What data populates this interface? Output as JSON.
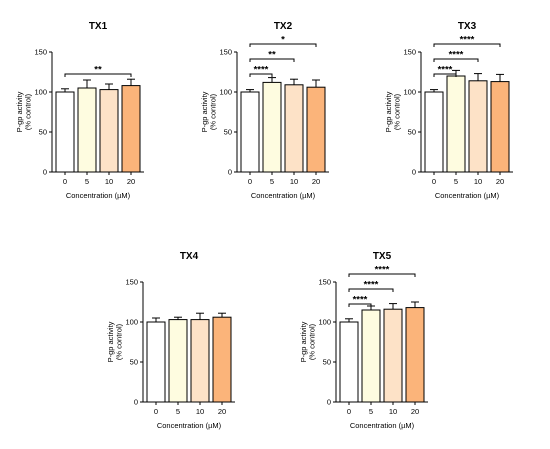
{
  "colors": {
    "c0": "#ffffff",
    "c5": "#fefce0",
    "c10": "#fde2c7",
    "c20": "#fbb47a"
  },
  "chart_data": [
    {
      "type": "bar",
      "title": "TX1",
      "ylabel": [
        "P-gp activity",
        "(% control)"
      ],
      "xlabel": "Concentration (µM)",
      "categories": [
        "0",
        "5",
        "10",
        "20"
      ],
      "values": [
        100,
        105,
        103,
        108
      ],
      "errors": [
        4,
        10,
        7,
        8
      ],
      "ylim": [
        0,
        150
      ],
      "yticks": [
        "0",
        "50",
        "100",
        "150"
      ],
      "significance": [
        {
          "from": 0,
          "to": 3,
          "label": "**"
        }
      ]
    },
    {
      "type": "bar",
      "title": "TX2",
      "ylabel": [
        "P-gp activity",
        "(% control)"
      ],
      "xlabel": "Concentration (µM)",
      "categories": [
        "0",
        "5",
        "10",
        "20"
      ],
      "values": [
        100,
        112,
        109,
        106
      ],
      "errors": [
        3,
        6,
        7,
        9
      ],
      "ylim": [
        0,
        150
      ],
      "yticks": [
        "0",
        "50",
        "100",
        "150"
      ],
      "significance": [
        {
          "from": 0,
          "to": 1,
          "label": "****"
        },
        {
          "from": 0,
          "to": 2,
          "label": "**"
        },
        {
          "from": 0,
          "to": 3,
          "label": "*"
        }
      ]
    },
    {
      "type": "bar",
      "title": "TX3",
      "ylabel": [
        "P-gp activity",
        "(% control)"
      ],
      "xlabel": "Concentration (µM)",
      "categories": [
        "0",
        "5",
        "10",
        "20"
      ],
      "values": [
        100,
        120,
        114,
        113
      ],
      "errors": [
        3,
        7,
        9,
        9
      ],
      "ylim": [
        0,
        150
      ],
      "yticks": [
        "0",
        "50",
        "100",
        "150"
      ],
      "significance": [
        {
          "from": 0,
          "to": 1,
          "label": "****"
        },
        {
          "from": 0,
          "to": 2,
          "label": "****"
        },
        {
          "from": 0,
          "to": 3,
          "label": "****"
        }
      ]
    },
    {
      "type": "bar",
      "title": "TX4",
      "ylabel": [
        "P-gp activity",
        "(% control)"
      ],
      "xlabel": "Concentration (µM)",
      "categories": [
        "0",
        "5",
        "10",
        "20"
      ],
      "values": [
        100,
        103,
        103,
        106
      ],
      "errors": [
        5,
        3,
        8,
        5
      ],
      "ylim": [
        0,
        150
      ],
      "yticks": [
        "0",
        "50",
        "100",
        "150"
      ],
      "significance": []
    },
    {
      "type": "bar",
      "title": "TX5",
      "ylabel": [
        "P-gp activity",
        "(% control)"
      ],
      "xlabel": "Concentration (µM)",
      "categories": [
        "0",
        "5",
        "10",
        "20"
      ],
      "values": [
        100,
        115,
        116,
        118
      ],
      "errors": [
        4,
        5,
        7,
        7
      ],
      "ylim": [
        0,
        150
      ],
      "yticks": [
        "0",
        "50",
        "100",
        "150"
      ],
      "significance": [
        {
          "from": 0,
          "to": 1,
          "label": "****"
        },
        {
          "from": 0,
          "to": 2,
          "label": "****"
        },
        {
          "from": 0,
          "to": 3,
          "label": "****"
        }
      ]
    }
  ]
}
